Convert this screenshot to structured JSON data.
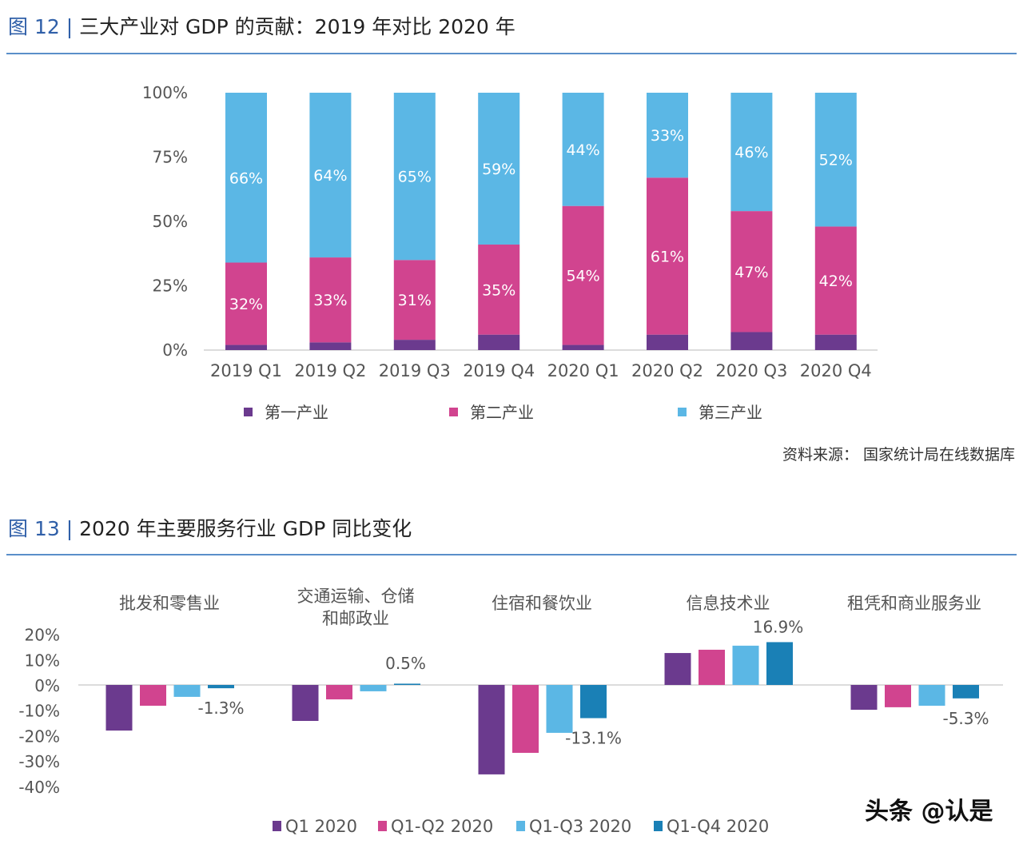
{
  "figure12": {
    "prefix": "图 12 | ",
    "title": "三大产业对 GDP 的贡献：2019 年对比 2020 年",
    "source": "资料来源：  国家统计局在线数据库"
  },
  "figure13": {
    "prefix": "图 13 | ",
    "title": "2020 年主要服务行业 GDP 同比变化"
  },
  "watermark": "头条 @认是",
  "chart_data": [
    {
      "type": "bar",
      "stacked": true,
      "categories": [
        "2019 Q1",
        "2019 Q2",
        "2019 Q3",
        "2019 Q4",
        "2020 Q1",
        "2020 Q2",
        "2020 Q3",
        "2020 Q4"
      ],
      "series": [
        {
          "name": "第一产业",
          "color": "#6b3a8e",
          "values": [
            2,
            3,
            4,
            6,
            2,
            6,
            7,
            6
          ],
          "labels": [
            "",
            "",
            "",
            "",
            "",
            "",
            "",
            ""
          ]
        },
        {
          "name": "第二产业",
          "color": "#d1448f",
          "values": [
            32,
            33,
            31,
            35,
            54,
            61,
            47,
            42
          ],
          "labels": [
            "32%",
            "33%",
            "31%",
            "35%",
            "54%",
            "61%",
            "47%",
            "42%"
          ]
        },
        {
          "name": "第三产业",
          "color": "#5bb7e5",
          "values": [
            66,
            64,
            65,
            59,
            44,
            33,
            46,
            52
          ],
          "labels": [
            "66%",
            "64%",
            "65%",
            "59%",
            "44%",
            "33%",
            "46%",
            "52%"
          ]
        }
      ],
      "yticks": [
        "0%",
        "25%",
        "50%",
        "75%",
        "100%"
      ],
      "ylim": [
        0,
        100
      ],
      "legend": "bottom",
      "grid": false
    },
    {
      "type": "bar",
      "categories": [
        "批发和零售业",
        "交通运输、仓储\n和邮政业",
        "住宿和餐饮业",
        "信息技术业",
        "租凭和商业服务业"
      ],
      "series": [
        {
          "name": "Q1 2020",
          "color": "#6b3a8e",
          "values": [
            -18.0,
            -14.2,
            -35.3,
            12.6,
            -9.8
          ]
        },
        {
          "name": "Q1-Q2 2020",
          "color": "#d1448f",
          "values": [
            -8.2,
            -5.7,
            -26.8,
            13.9,
            -8.8
          ]
        },
        {
          "name": "Q1-Q3 2020",
          "color": "#5bb7e5",
          "values": [
            -4.7,
            -2.5,
            -18.9,
            15.5,
            -8.2
          ]
        },
        {
          "name": "Q1-Q4 2020",
          "color": "#1a80b6",
          "values": [
            -1.3,
            0.5,
            -13.1,
            16.9,
            -5.3
          ]
        }
      ],
      "data_labels": [
        "-1.3%",
        "0.5%",
        "-13.1%",
        "16.9%",
        "-5.3%"
      ],
      "yticks": [
        "-40%",
        "-30%",
        "-20%",
        "-10%",
        "0%",
        "10%",
        "20%"
      ],
      "ylim": [
        -40,
        20
      ],
      "legend": "bottom",
      "grid": false
    }
  ]
}
